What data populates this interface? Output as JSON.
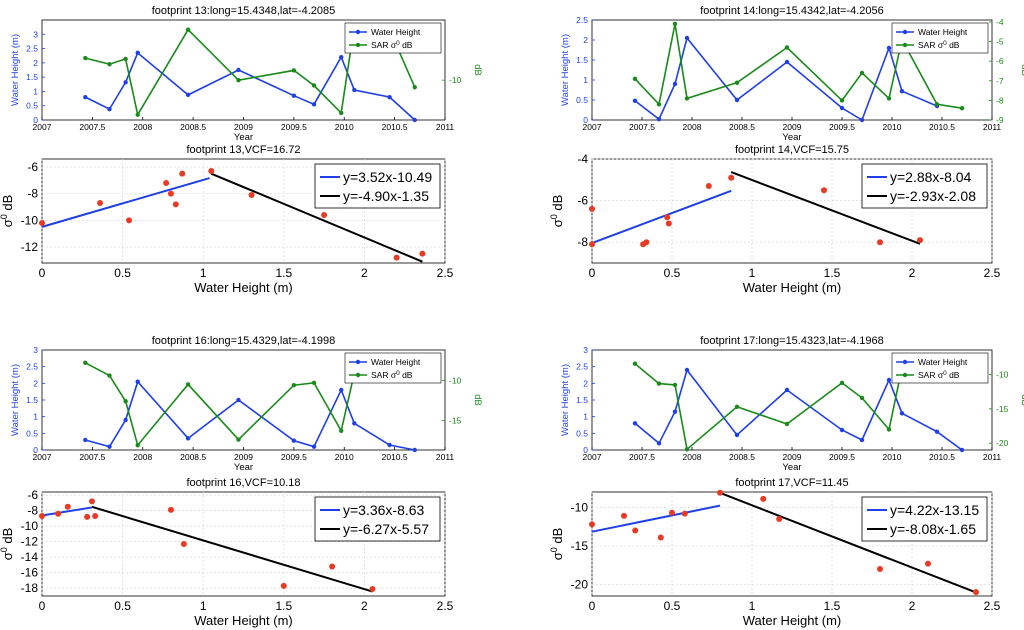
{
  "colors": {
    "wh": "#1f3fe8",
    "sar": "#1a8a1a",
    "red": "#e83a24",
    "blue_fit": "#1f3fe8",
    "black_fit": "#000000",
    "grid": "#d8d8d8"
  },
  "legend": {
    "wh": "Water Height",
    "sar_prefix": "SAR ",
    "sigma": "σ",
    "sup": "0",
    "sar_suffix": " dB"
  },
  "footprints": [
    {
      "ts": {
        "title": "footprint 13:long=15.4348,lat=-4.2085",
        "xlabel": "Year",
        "ylabel": "Water Height (m)",
        "y2label": "dB",
        "xticks": [
          "2007",
          "2007.5",
          "2008",
          "2008.5",
          "2009",
          "2009.5",
          "2010",
          "2010.5",
          "2011"
        ],
        "yticks": [
          "0",
          "0.5",
          "1",
          "1.5",
          "2",
          "2.5",
          "3"
        ],
        "y2ticks": [
          "-10"
        ],
        "wh_x": [
          2007.43,
          2007.67,
          2007.83,
          2007.95,
          2008.45,
          2008.95,
          2009.5,
          2009.7,
          2009.97,
          2010.1,
          2010.45,
          2010.7
        ],
        "wh_y": [
          0.8,
          0.38,
          1.32,
          2.35,
          0.88,
          1.75,
          0.85,
          0.55,
          2.2,
          1.05,
          0.8,
          0.0
        ],
        "sar_x": [
          2007.43,
          2007.67,
          2007.83,
          2007.95,
          2008.45,
          2008.95,
          2009.5,
          2009.7,
          2009.97,
          2010.1,
          2010.45,
          2010.7
        ],
        "sar_y": [
          -7.5,
          -8.2,
          -7.6,
          -13.9,
          -4.3,
          -10.0,
          -8.9,
          -10.6,
          -13.7,
          -3.9,
          -4.3,
          -10.8
        ],
        "ylim": [
          0,
          3.5
        ],
        "y2lim": [
          -14.5,
          -3.2
        ],
        "xlim": [
          2007,
          2011
        ]
      },
      "sc": {
        "title": "footprint 13,VCF=16.72",
        "xlabel": "Water Height (m)",
        "ylabel": "σ",
        "xticks": [
          "0",
          "0.5",
          "1",
          "1.5",
          "2",
          "2.5"
        ],
        "yticks": [
          "-6",
          "-8",
          "-10",
          "-12"
        ],
        "pts": [
          [
            0.0,
            -10.2
          ],
          [
            0.36,
            -8.7
          ],
          [
            0.54,
            -10.0
          ],
          [
            0.77,
            -7.2
          ],
          [
            0.8,
            -8.0
          ],
          [
            0.83,
            -8.8
          ],
          [
            0.87,
            -6.5
          ],
          [
            1.05,
            -6.3
          ],
          [
            1.3,
            -8.1
          ],
          [
            1.75,
            -9.6
          ],
          [
            2.2,
            -12.8
          ],
          [
            2.36,
            -12.5
          ]
        ],
        "blue": [
          [
            0.0,
            -10.49
          ],
          [
            1.04,
            -6.83
          ]
        ],
        "black": [
          [
            1.05,
            -6.5
          ],
          [
            2.36,
            -13.1
          ]
        ],
        "eq1": "y=3.52x-10.49",
        "eq2": "y=-4.90x-1.35",
        "xlim": [
          0,
          2.5
        ],
        "ylim": [
          -13.2,
          -5.4
        ]
      }
    },
    {
      "ts": {
        "title": "footprint 14:long=15.4342,lat=-4.2056",
        "xlabel": "Year",
        "ylabel": "Water Height (m)",
        "y2label": "dB",
        "xticks": [
          "2007",
          "2007.5",
          "2008",
          "2008.5",
          "2009",
          "2009.5",
          "2010",
          "2010.5",
          "2011"
        ],
        "yticks": [
          "0",
          "0.5",
          "1",
          "1.5",
          "2",
          "2.5"
        ],
        "y2ticks": [
          "-4",
          "-5",
          "-6",
          "-7",
          "-8",
          "-9"
        ],
        "wh_x": [
          2007.43,
          2007.67,
          2007.83,
          2007.95,
          2008.45,
          2008.95,
          2009.5,
          2009.7,
          2009.97,
          2010.1,
          2010.45
        ],
        "wh_y": [
          0.48,
          0.02,
          0.9,
          2.05,
          0.5,
          1.45,
          0.3,
          0.0,
          1.8,
          0.72,
          0.35
        ],
        "sar_x": [
          2007.43,
          2007.67,
          2007.83,
          2007.95,
          2008.45,
          2008.95,
          2009.5,
          2009.7,
          2009.97,
          2010.1,
          2010.45,
          2010.7
        ],
        "sar_y": [
          -6.9,
          -8.2,
          -4.1,
          -7.9,
          -7.1,
          -5.3,
          -8.0,
          -6.6,
          -7.9,
          -4.9,
          -8.2,
          -8.4
        ],
        "ylim": [
          0,
          2.5
        ],
        "y2lim": [
          -9,
          -3.9
        ],
        "xlim": [
          2007,
          2011
        ]
      },
      "sc": {
        "title": "footprint 14,VCF=15.75",
        "xlabel": "Water Height (m)",
        "ylabel": "σ",
        "xticks": [
          "0",
          "0.5",
          "1",
          "1.5",
          "2",
          "2.5"
        ],
        "yticks": [
          "-4",
          "-6",
          "-8"
        ],
        "pts": [
          [
            0.0,
            -6.4
          ],
          [
            0.0,
            -8.1
          ],
          [
            0.32,
            -8.1
          ],
          [
            0.34,
            -8.0
          ],
          [
            0.47,
            -6.8
          ],
          [
            0.48,
            -7.1
          ],
          [
            0.73,
            -5.3
          ],
          [
            0.87,
            -4.9
          ],
          [
            1.45,
            -5.5
          ],
          [
            1.8,
            -8.0
          ],
          [
            2.05,
            -7.9
          ]
        ],
        "blue": [
          [
            0.0,
            -8.04
          ],
          [
            0.87,
            -5.53
          ]
        ],
        "black": [
          [
            0.87,
            -4.63
          ],
          [
            2.05,
            -8.08
          ]
        ],
        "eq1": "y=2.88x-8.04",
        "eq2": "y=-2.93x-2.08",
        "xlim": [
          0,
          2.5
        ],
        "ylim": [
          -9.0,
          -4.0
        ]
      }
    },
    {
      "ts": {
        "title": "footprint 16:long=15.4329,lat=-4.1998",
        "xlabel": "Year",
        "ylabel": "Water Height (m)",
        "y2label": "dB",
        "xticks": [
          "2007",
          "2007.5",
          "2008",
          "2008.5",
          "2009",
          "2009.5",
          "2010",
          "2010.5",
          "2011"
        ],
        "yticks": [
          "0",
          "0.5",
          "1",
          "1.5",
          "2",
          "2.5",
          "3"
        ],
        "y2ticks": [
          "-10",
          "-15"
        ],
        "wh_x": [
          2007.43,
          2007.67,
          2007.83,
          2007.95,
          2008.45,
          2008.95,
          2009.5,
          2009.7,
          2009.97,
          2010.1,
          2010.45,
          2010.7
        ],
        "wh_y": [
          0.3,
          0.1,
          0.9,
          2.05,
          0.35,
          1.5,
          0.28,
          0.1,
          1.8,
          0.8,
          0.15,
          0.0
        ],
        "sar_x": [
          2007.43,
          2007.67,
          2007.83,
          2007.95,
          2008.45,
          2008.95,
          2009.5,
          2009.7,
          2009.97,
          2010.1
        ],
        "sar_y": [
          -7.8,
          -9.4,
          -12.6,
          -18.1,
          -10.5,
          -17.4,
          -10.6,
          -10.3,
          -16.3,
          -9.1
        ],
        "ylim": [
          0,
          3
        ],
        "y2lim": [
          -18.7,
          -6.2
        ],
        "xlim": [
          2007,
          2011
        ]
      },
      "sc": {
        "title": "footprint 16,VCF=10.18",
        "xlabel": "Water Height (m)",
        "ylabel": "σ",
        "xticks": [
          "0",
          "0.5",
          "1",
          "1.5",
          "2",
          "2.5"
        ],
        "yticks": [
          "-6",
          "-8",
          "-10",
          "-12",
          "-14",
          "-16",
          "-18"
        ],
        "pts": [
          [
            0.0,
            -8.7
          ],
          [
            0.1,
            -8.4
          ],
          [
            0.16,
            -7.5
          ],
          [
            0.28,
            -8.8
          ],
          [
            0.31,
            -6.8
          ],
          [
            0.33,
            -8.7
          ],
          [
            0.8,
            -7.9
          ],
          [
            0.88,
            -12.3
          ],
          [
            1.5,
            -17.7
          ],
          [
            1.8,
            -15.2
          ],
          [
            2.05,
            -18.1
          ]
        ],
        "blue": [
          [
            0.0,
            -8.63
          ],
          [
            0.31,
            -7.59
          ]
        ],
        "black": [
          [
            0.31,
            -7.51
          ],
          [
            2.05,
            -18.43
          ]
        ],
        "eq1": "y=3.36x-8.63",
        "eq2": "y=-6.27x-5.57",
        "xlim": [
          0,
          2.5
        ],
        "ylim": [
          -19.0,
          -5.6
        ]
      }
    },
    {
      "ts": {
        "title": "footprint 17:long=15.4323,lat=-4.1968",
        "xlabel": "Year",
        "ylabel": "Water Height (m)",
        "y2label": "dB",
        "xticks": [
          "2007",
          "2007.5",
          "2008",
          "2008.5",
          "2009",
          "2009.5",
          "2010",
          "2010.5",
          "2011"
        ],
        "yticks": [
          "0",
          "0.5",
          "1",
          "1.5",
          "2",
          "2.5",
          "3"
        ],
        "y2ticks": [
          "-10",
          "-15",
          "-20"
        ],
        "wh_x": [
          2007.43,
          2007.67,
          2007.83,
          2007.95,
          2008.45,
          2008.95,
          2009.5,
          2009.7,
          2009.97,
          2010.1,
          2010.45,
          2010.7
        ],
        "wh_y": [
          0.8,
          0.2,
          1.15,
          2.4,
          0.45,
          1.8,
          0.6,
          0.3,
          2.1,
          1.1,
          0.55,
          0.0
        ],
        "sar_x": [
          2007.43,
          2007.67,
          2007.83,
          2007.95,
          2008.45,
          2008.95,
          2009.5,
          2009.7,
          2009.97,
          2010.1,
          2010.45
        ],
        "sar_y": [
          -8.4,
          -11.3,
          -11.5,
          -20.9,
          -14.7,
          -17.2,
          -11.2,
          -13.4,
          -18.0,
          -9.0,
          -9.8
        ],
        "ylim": [
          0,
          3
        ],
        "y2lim": [
          -21.0,
          -6.4
        ],
        "xlim": [
          2007,
          2011
        ]
      },
      "sc": {
        "title": "footprint 17,VCF=11.45",
        "xlabel": "Water Height (m)",
        "ylabel": "σ",
        "xticks": [
          "0",
          "0.5",
          "1",
          "1.5",
          "2",
          "2.5"
        ],
        "yticks": [
          "-10",
          "-15",
          "-20"
        ],
        "pts": [
          [
            0.0,
            -12.2
          ],
          [
            0.2,
            -11.1
          ],
          [
            0.27,
            -13.0
          ],
          [
            0.43,
            -13.9
          ],
          [
            0.5,
            -10.7
          ],
          [
            0.58,
            -10.8
          ],
          [
            0.8,
            -8.1
          ],
          [
            1.07,
            -8.9
          ],
          [
            1.17,
            -11.5
          ],
          [
            1.8,
            -18.0
          ],
          [
            2.1,
            -17.3
          ],
          [
            2.4,
            -21.0
          ]
        ],
        "blue": [
          [
            0.0,
            -13.15
          ],
          [
            0.8,
            -9.77
          ]
        ],
        "black": [
          [
            0.8,
            -8.11
          ],
          [
            2.4,
            -21.04
          ]
        ],
        "eq1": "y=4.22x-13.15",
        "eq2": "y=-8.08x-1.65",
        "xlim": [
          0,
          2.5
        ],
        "ylim": [
          -21.5,
          -8.0
        ]
      }
    }
  ],
  "chart_data": [
    {
      "type": "line",
      "title": "footprint 13:long=15.4348,lat=-4.2085",
      "xlabel": "Year",
      "ylabel": "Water Height (m)",
      "y2label": "dB",
      "series": [
        {
          "name": "Water Height",
          "x": [
            2007.43,
            2007.67,
            2007.83,
            2007.95,
            2008.45,
            2008.95,
            2009.5,
            2009.7,
            2009.97,
            2010.1,
            2010.45,
            2010.7
          ],
          "values": [
            0.8,
            0.38,
            1.32,
            2.35,
            0.88,
            1.75,
            0.85,
            0.55,
            2.2,
            1.05,
            0.8,
            0.0
          ]
        },
        {
          "name": "SAR σ0 dB",
          "x": [
            2007.43,
            2007.67,
            2007.83,
            2007.95,
            2008.45,
            2008.95,
            2009.5,
            2009.7,
            2009.97,
            2010.1,
            2010.45,
            2010.7
          ],
          "values": [
            -7.5,
            -8.2,
            -7.6,
            -13.9,
            -4.3,
            -10.0,
            -8.9,
            -10.6,
            -13.7,
            -3.9,
            -4.3,
            -10.8
          ]
        }
      ]
    },
    {
      "type": "scatter",
      "title": "footprint 13,VCF=16.72",
      "xlabel": "Water Height (m)",
      "ylabel": "σ0 dB",
      "fits": [
        "y=3.52x-10.49",
        "y=-4.90x-1.35"
      ]
    },
    {
      "type": "line",
      "title": "footprint 14:long=15.4342,lat=-4.2056",
      "xlabel": "Year",
      "ylabel": "Water Height (m)",
      "y2label": "dB"
    },
    {
      "type": "scatter",
      "title": "footprint 14,VCF=15.75",
      "xlabel": "Water Height (m)",
      "ylabel": "σ0 dB",
      "fits": [
        "y=2.88x-8.04",
        "y=-2.93x-2.08"
      ]
    },
    {
      "type": "line",
      "title": "footprint 16:long=15.4329,lat=-4.1998",
      "xlabel": "Year",
      "ylabel": "Water Height (m)",
      "y2label": "dB"
    },
    {
      "type": "scatter",
      "title": "footprint 16,VCF=10.18",
      "xlabel": "Water Height (m)",
      "ylabel": "σ0 dB",
      "fits": [
        "y=3.36x-8.63",
        "y=-6.27x-5.57"
      ]
    },
    {
      "type": "line",
      "title": "footprint 17:long=15.4323,lat=-4.1968",
      "xlabel": "Year",
      "ylabel": "Water Height (m)",
      "y2label": "dB"
    },
    {
      "type": "scatter",
      "title": "footprint 17,VCF=11.45",
      "xlabel": "Water Height (m)",
      "ylabel": "σ0 dB",
      "fits": [
        "y=4.22x-13.15",
        "y=-8.08x-1.65"
      ]
    }
  ]
}
